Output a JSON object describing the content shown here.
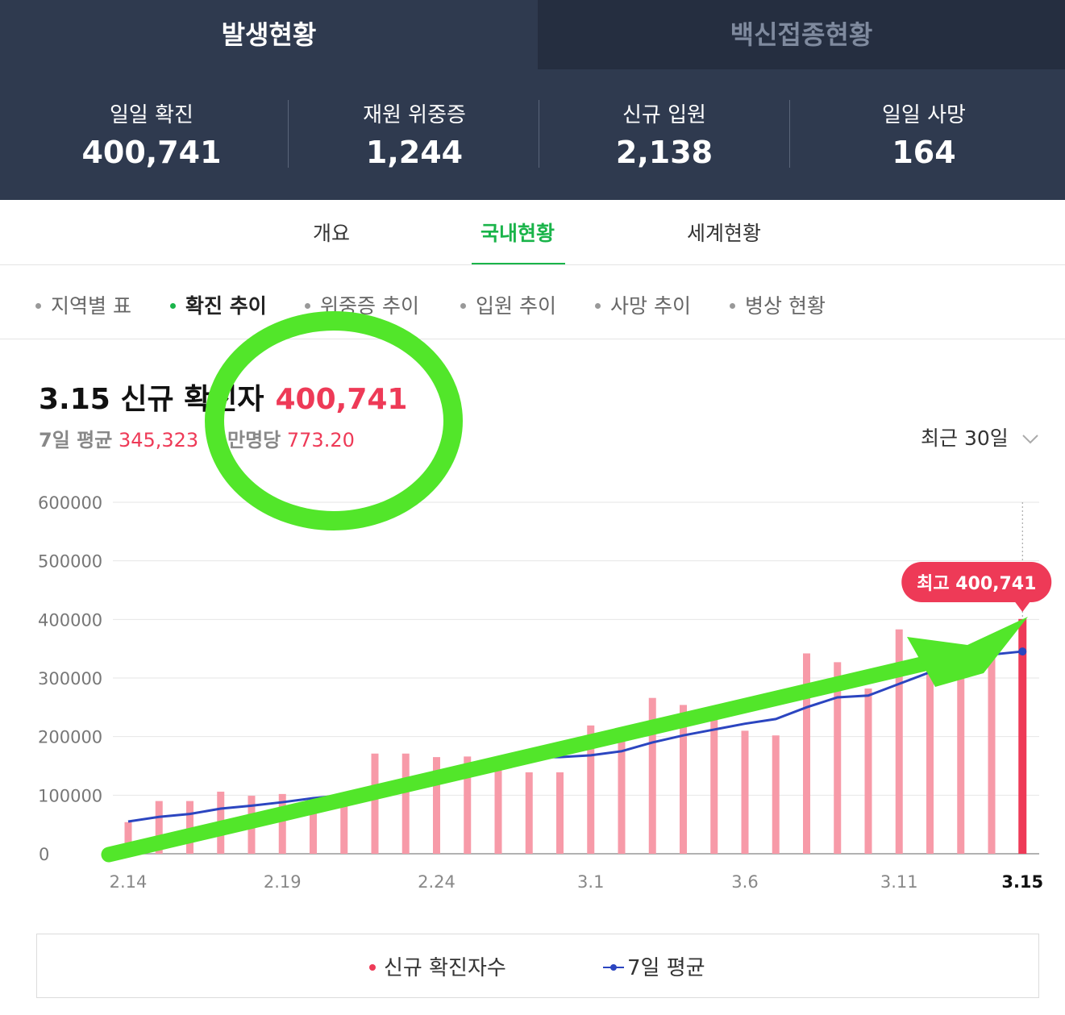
{
  "top_tabs": {
    "active": "발생현황",
    "inactive": "백신접종현황"
  },
  "stats": [
    {
      "label": "일일 확진",
      "value": "400,741"
    },
    {
      "label": "재원 위중증",
      "value": "1,244"
    },
    {
      "label": "신규 입원",
      "value": "2,138"
    },
    {
      "label": "일일 사망",
      "value": "164"
    }
  ],
  "tabs": [
    "개요",
    "국내현황",
    "세계현황"
  ],
  "subtabs": [
    "지역별 표",
    "확진 추이",
    "위중증 추이",
    "입원 추이",
    "사망 추이",
    "병상 현황"
  ],
  "headline": {
    "prefix": "3.15 신규 확진자",
    "value": "400,741"
  },
  "averages": {
    "avg_label": "7일 평균",
    "avg_value": "345,323",
    "per_label": "만명당",
    "per_value": "773.20"
  },
  "period_select": "최근 30일",
  "colors": {
    "bar": "#f79aa8",
    "bar_highlight": "#ee3a57",
    "avg_line": "#2b45c0",
    "accent": "#1ab44a",
    "header_bg": "#2f3a4f",
    "annotation": "#52e62a"
  },
  "chart_data": {
    "type": "bar",
    "categories": [
      "2.14",
      "2.15",
      "2.16",
      "2.17",
      "2.18",
      "2.19",
      "2.20",
      "2.21",
      "2.22",
      "2.23",
      "2.24",
      "2.25",
      "2.26",
      "2.27",
      "2.28",
      "3.1",
      "3.2",
      "3.3",
      "3.4",
      "3.5",
      "3.6",
      "3.7",
      "3.8",
      "3.9",
      "3.10",
      "3.11",
      "3.12",
      "3.13",
      "3.14",
      "3.15"
    ],
    "x_tick_labels": [
      "2.14",
      "2.19",
      "2.24",
      "3.1",
      "3.6",
      "3.11",
      "3.15"
    ],
    "y_ticks": [
      "600000",
      "500000",
      "400000",
      "300000",
      "200000",
      "100000",
      "0"
    ],
    "ylim": [
      0,
      600000
    ],
    "series": [
      {
        "name": "신규 확진자수",
        "type": "bar",
        "values": [
          54000,
          90000,
          90000,
          106000,
          99000,
          102000,
          94000,
          95000,
          171000,
          171000,
          165000,
          166000,
          163000,
          139000,
          139000,
          219000,
          198000,
          266000,
          254000,
          243000,
          210000,
          202000,
          342000,
          327000,
          282000,
          383000,
          351000,
          310000,
          362000,
          400741
        ]
      },
      {
        "name": "7일 평균",
        "type": "line",
        "values": [
          55000,
          63000,
          68000,
          77000,
          82000,
          88000,
          95000,
          100000,
          112000,
          125000,
          135000,
          145000,
          155000,
          165000,
          165000,
          168000,
          175000,
          190000,
          202000,
          212000,
          222000,
          230000,
          250000,
          267000,
          270000,
          290000,
          310000,
          322000,
          340000,
          345323
        ]
      }
    ],
    "tooltip": "최고 400,741"
  }
}
